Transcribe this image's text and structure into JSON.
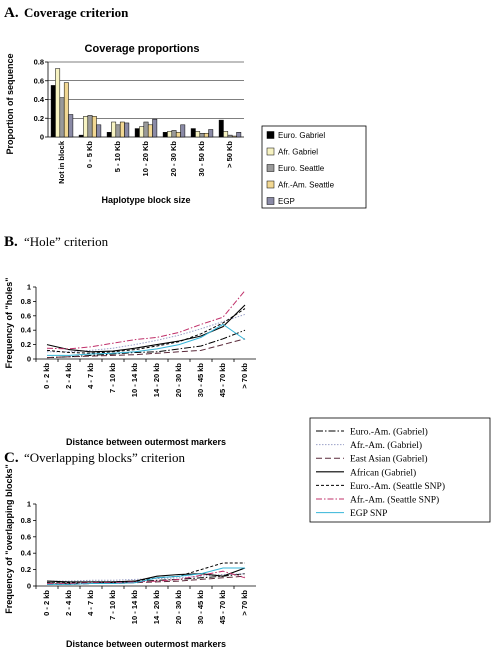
{
  "panels": {
    "a": {
      "letter": "A.",
      "title": "Coverage criterion"
    },
    "b": {
      "letter": "B.",
      "title": "“Hole” criterion"
    },
    "c": {
      "letter": "C.",
      "title": "“Overlapping blocks” criterion"
    }
  },
  "chart_data": [
    {
      "id": "coverage",
      "type": "bar",
      "title": "Coverage proportions",
      "xlabel": "Haplotype block size",
      "ylabel": "Proportion of sequence",
      "ylim": [
        0,
        0.8
      ],
      "yticks": [
        0,
        0.2,
        0.4,
        0.6,
        0.8
      ],
      "grid": true,
      "legend_position": "right",
      "categories": [
        "Not in block",
        "0 - 5 Kb",
        "5 - 10 Kb",
        "10 - 20 Kb",
        "20 - 30 Kb",
        "30 - 50 Kb",
        "> 50 Kb"
      ],
      "series": [
        {
          "name": "Euro. Gabriel",
          "color": "#000000",
          "values": [
            0.55,
            0.02,
            0.05,
            0.09,
            0.05,
            0.09,
            0.18
          ]
        },
        {
          "name": "Afr. Gabriel",
          "color": "#f7f3c2",
          "values": [
            0.73,
            0.22,
            0.16,
            0.11,
            0.06,
            0.06,
            0.06
          ]
        },
        {
          "name": "Euro. Seattle",
          "color": "#9a9a9a",
          "values": [
            0.42,
            0.23,
            0.13,
            0.16,
            0.07,
            0.04,
            0.02
          ]
        },
        {
          "name": "Afr.-Am. Seattle",
          "color": "#f2d893",
          "values": [
            0.58,
            0.22,
            0.16,
            0.13,
            0.05,
            0.04,
            0.01
          ]
        },
        {
          "name": "EGP",
          "color": "#8a8aa6",
          "values": [
            0.24,
            0.13,
            0.15,
            0.19,
            0.13,
            0.08,
            0.05
          ]
        }
      ]
    },
    {
      "id": "holes",
      "type": "line",
      "xlabel": "Distance between outermost markers",
      "ylabel": "Frequency of \"holes\"",
      "ylim": [
        0,
        1
      ],
      "yticks": [
        0,
        0.2,
        0.4,
        0.6,
        0.8,
        1
      ],
      "categories": [
        "0 - 2 kb",
        "2 - 4 kb",
        "4 - 7 kb",
        "7 - 10 kb",
        "10 - 14 kb",
        "14 - 20 kb",
        "20 - 30 kb",
        "30 - 45 kb",
        "45 - 70 kb",
        "> 70 kb"
      ],
      "series": [
        {
          "name": "Euro.-Am. (Gabriel)",
          "values": [
            0.02,
            0.03,
            0.05,
            0.07,
            0.09,
            0.1,
            0.14,
            0.18,
            0.28,
            0.4
          ]
        },
        {
          "name": "Afr.-Am. (Gabriel)",
          "values": [
            0.1,
            0.1,
            0.12,
            0.15,
            0.2,
            0.26,
            0.33,
            0.42,
            0.52,
            0.62
          ]
        },
        {
          "name": "East Asian (Gabriel)",
          "values": [
            0.02,
            0.03,
            0.04,
            0.05,
            0.06,
            0.08,
            0.1,
            0.12,
            0.2,
            0.28
          ]
        },
        {
          "name": "African (Gabriel)",
          "values": [
            0.2,
            0.13,
            0.1,
            0.11,
            0.15,
            0.2,
            0.25,
            0.32,
            0.45,
            0.75
          ]
        },
        {
          "name": "Euro.-Am. (Seattle SNP)",
          "values": [
            0.12,
            0.09,
            0.08,
            0.1,
            0.13,
            0.18,
            0.24,
            0.35,
            0.5,
            0.7
          ]
        },
        {
          "name": "Afr.-Am. (Seattle SNP)",
          "values": [
            0.15,
            0.14,
            0.17,
            0.22,
            0.27,
            0.3,
            0.37,
            0.48,
            0.58,
            0.95
          ]
        },
        {
          "name": "EGP SNP",
          "values": [
            0.05,
            0.05,
            0.07,
            0.08,
            0.1,
            0.14,
            0.2,
            0.3,
            0.48,
            0.27
          ]
        }
      ]
    },
    {
      "id": "overlap",
      "type": "line",
      "xlabel": "Distance between outermost markers",
      "ylabel": "Frequency of \"overlapping blocks\"",
      "ylim": [
        0,
        1
      ],
      "yticks": [
        0,
        0.2,
        0.4,
        0.6,
        0.8,
        1
      ],
      "categories": [
        "0 - 2 kb",
        "2 - 4 kb",
        "4 - 7 kb",
        "7 - 10 kb",
        "10 - 14 kb",
        "14 - 20 kb",
        "20 - 30 kb",
        "30 - 45 kb",
        "45 - 70 kb",
        "> 70 kb"
      ],
      "series": [
        {
          "name": "Euro.-Am. (Gabriel)",
          "values": [
            0.04,
            0.03,
            0.03,
            0.04,
            0.05,
            0.07,
            0.08,
            0.1,
            0.12,
            0.15
          ]
        },
        {
          "name": "Afr.-Am. (Gabriel)",
          "values": [
            0.06,
            0.06,
            0.07,
            0.07,
            0.08,
            0.09,
            0.1,
            0.12,
            0.14,
            0.15
          ]
        },
        {
          "name": "East Asian (Gabriel)",
          "values": [
            0.02,
            0.02,
            0.03,
            0.03,
            0.04,
            0.05,
            0.06,
            0.08,
            0.1,
            0.12
          ]
        },
        {
          "name": "African (Gabriel)",
          "values": [
            0.06,
            0.05,
            0.05,
            0.05,
            0.06,
            0.12,
            0.14,
            0.15,
            0.12,
            0.22
          ]
        },
        {
          "name": "Euro.-Am. (Seattle SNP)",
          "values": [
            0.04,
            0.04,
            0.05,
            0.05,
            0.06,
            0.1,
            0.12,
            0.2,
            0.28,
            0.28
          ]
        },
        {
          "name": "Afr.-Am. (Seattle SNP)",
          "values": [
            0.03,
            0.03,
            0.04,
            0.04,
            0.05,
            0.06,
            0.08,
            0.13,
            0.18,
            0.1
          ]
        },
        {
          "name": "EGP SNP",
          "values": [
            0.02,
            0.02,
            0.03,
            0.03,
            0.04,
            0.1,
            0.12,
            0.15,
            0.22,
            0.22
          ]
        }
      ]
    }
  ],
  "line_styles": [
    {
      "color": "#000000",
      "dash": "7,2,1.5,2",
      "width": 1
    },
    {
      "color": "#9aa0c8",
      "dash": "1.5,1.5",
      "width": 1
    },
    {
      "color": "#5a2a3a",
      "dash": "6,3",
      "width": 1
    },
    {
      "color": "#000000",
      "dash": "",
      "width": 1.1
    },
    {
      "color": "#000000",
      "dash": "3,2",
      "width": 1
    },
    {
      "color": "#c0306a",
      "dash": "6,2,1.5,2",
      "width": 1
    },
    {
      "color": "#35b5d8",
      "dash": "",
      "width": 1
    }
  ]
}
